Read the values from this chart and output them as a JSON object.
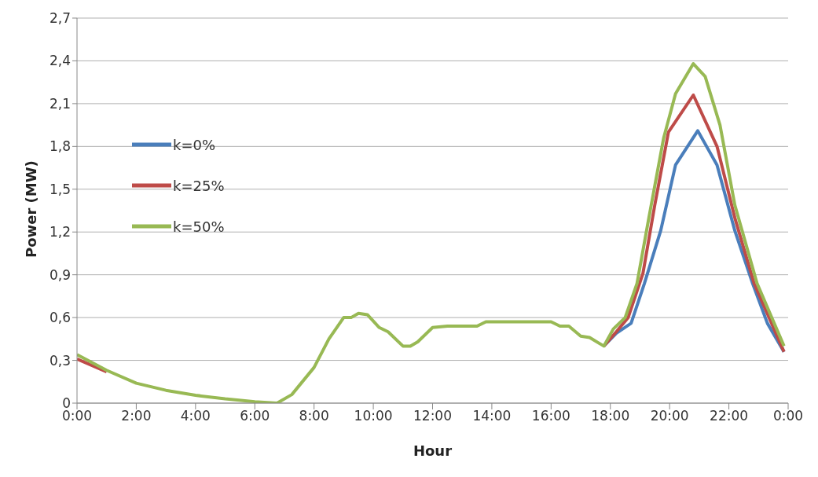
{
  "chart_data": {
    "type": "line",
    "xlabel": "Hour",
    "ylabel": "Power (MW)",
    "xlim": [
      0,
      24
    ],
    "xticks": [
      {
        "value": 0,
        "label": "0:00"
      },
      {
        "value": 2,
        "label": "2:00"
      },
      {
        "value": 4,
        "label": "4:00"
      },
      {
        "value": 6,
        "label": "6:00"
      },
      {
        "value": 8,
        "label": "8:00"
      },
      {
        "value": 10,
        "label": "10:00"
      },
      {
        "value": 12,
        "label": "12:00"
      },
      {
        "value": 14,
        "label": "14:00"
      },
      {
        "value": 16,
        "label": "16:00"
      },
      {
        "value": 18,
        "label": "18:00"
      },
      {
        "value": 20,
        "label": "20:00"
      },
      {
        "value": 22,
        "label": "22:00"
      },
      {
        "value": 24,
        "label": "0:00"
      }
    ],
    "ylim": [
      0,
      2.7
    ],
    "yticks": [
      0,
      {
        "value": 0.3,
        "label": "0,3"
      },
      {
        "value": 0.6,
        "label": "0,6"
      },
      {
        "value": 0.9,
        "label": "0,9"
      },
      {
        "value": 1.2,
        "label": "1,2"
      },
      {
        "value": 1.5,
        "label": "1,5"
      },
      {
        "value": 1.8,
        "label": "1,8"
      },
      {
        "value": 2.1,
        "label": "2,1"
      },
      {
        "value": 2.4,
        "label": "2,4"
      },
      {
        "value": 2.7,
        "label": "2,7"
      }
    ],
    "grid": "y",
    "legend": "top left",
    "marker": "none",
    "line_style": "solid",
    "series": [
      {
        "name": "k=0%",
        "color": "#4a7ebb",
        "x": [
          17.78,
          18.2,
          18.7,
          19.15,
          19.7,
          20.2,
          20.95,
          21.6,
          22.2,
          22.8,
          23.3,
          23.86
        ],
        "values": [
          0.4,
          0.49,
          0.56,
          0.84,
          1.21,
          1.67,
          1.91,
          1.67,
          1.21,
          0.84,
          0.56,
          0.36
        ]
      },
      {
        "name": "k=25%",
        "color": "#be4b48",
        "x": [
          0,
          1,
          2,
          3,
          4,
          5,
          6,
          6.75,
          7.25,
          8,
          8.5,
          9,
          9.25,
          9.5,
          9.8,
          10.2,
          10.5,
          11,
          11.25,
          11.5,
          12,
          12.5,
          13.5,
          13.8,
          16,
          16.3,
          16.6,
          17,
          17.3,
          17.78,
          18.2,
          18.6,
          19.1,
          19.5,
          19.96,
          20.8,
          21.6,
          22.2,
          22.85,
          23.86
        ],
        "values": [
          0.31,
          0.22,
          null,
          null,
          null,
          null,
          null,
          null,
          null,
          null,
          null,
          null,
          null,
          null,
          null,
          null,
          null,
          null,
          null,
          null,
          null,
          null,
          null,
          null,
          null,
          null,
          null,
          null,
          null,
          0.4,
          0.5,
          0.6,
          0.91,
          1.39,
          1.9,
          2.16,
          1.8,
          1.3,
          0.84,
          0.36
        ]
      },
      {
        "name": "k=50%",
        "color": "#98b954",
        "x": [
          0,
          1,
          2,
          3,
          4,
          5,
          6,
          6.75,
          7.25,
          8,
          8.5,
          9,
          9.25,
          9.5,
          9.8,
          10.2,
          10.5,
          11,
          11.25,
          11.5,
          12,
          12.5,
          13.5,
          13.8,
          16,
          16.3,
          16.6,
          17,
          17.3,
          17.78,
          18.1,
          18.5,
          18.9,
          19.3,
          19.8,
          20.2,
          20.8,
          21.2,
          21.7,
          22.2,
          22.95,
          23.86
        ],
        "values": [
          0.34,
          0.23,
          0.14,
          0.09,
          0.055,
          0.03,
          0.01,
          0,
          0.06,
          0.25,
          0.45,
          0.6,
          0.6,
          0.63,
          0.62,
          0.53,
          0.5,
          0.4,
          0.4,
          0.43,
          0.53,
          0.54,
          0.54,
          0.57,
          0.57,
          0.54,
          0.54,
          0.47,
          0.46,
          0.4,
          0.52,
          0.6,
          0.84,
          1.3,
          1.86,
          2.17,
          2.38,
          2.29,
          1.95,
          1.39,
          0.84,
          0.4
        ]
      }
    ]
  }
}
